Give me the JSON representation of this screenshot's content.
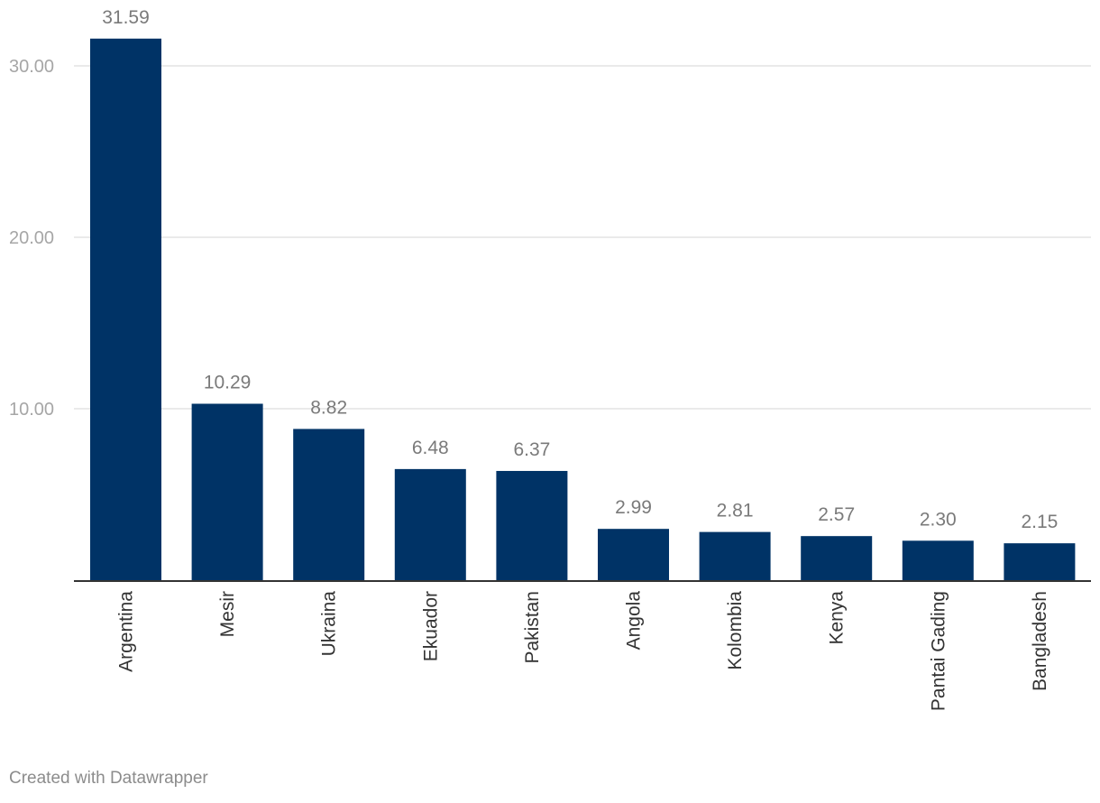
{
  "chart_data": {
    "type": "bar",
    "categories": [
      "Argentina",
      "Mesir",
      "Ukraina",
      "Ekuador",
      "Pakistan",
      "Angola",
      "Kolombia",
      "Kenya",
      "Pantai Gading",
      "Bangladesh"
    ],
    "values": [
      31.59,
      10.29,
      8.82,
      6.48,
      6.37,
      2.99,
      2.81,
      2.57,
      2.3,
      2.15
    ],
    "value_labels": [
      "31.59",
      "10.29",
      "8.82",
      "6.48",
      "6.37",
      "2.99",
      "2.81",
      "2.57",
      "2.30",
      "2.15"
    ],
    "y_ticks": [
      10,
      20,
      30
    ],
    "y_tick_labels": [
      "10.00",
      "20.00",
      "30.00"
    ],
    "ylim": [
      0,
      33.2
    ],
    "grid": true,
    "title": "",
    "xlabel": "",
    "ylabel": "",
    "bar_color": "#003366",
    "grid_color": "#e3e3e3",
    "axis_color": "#333333"
  },
  "footer": {
    "credit": "Created with Datawrapper"
  }
}
